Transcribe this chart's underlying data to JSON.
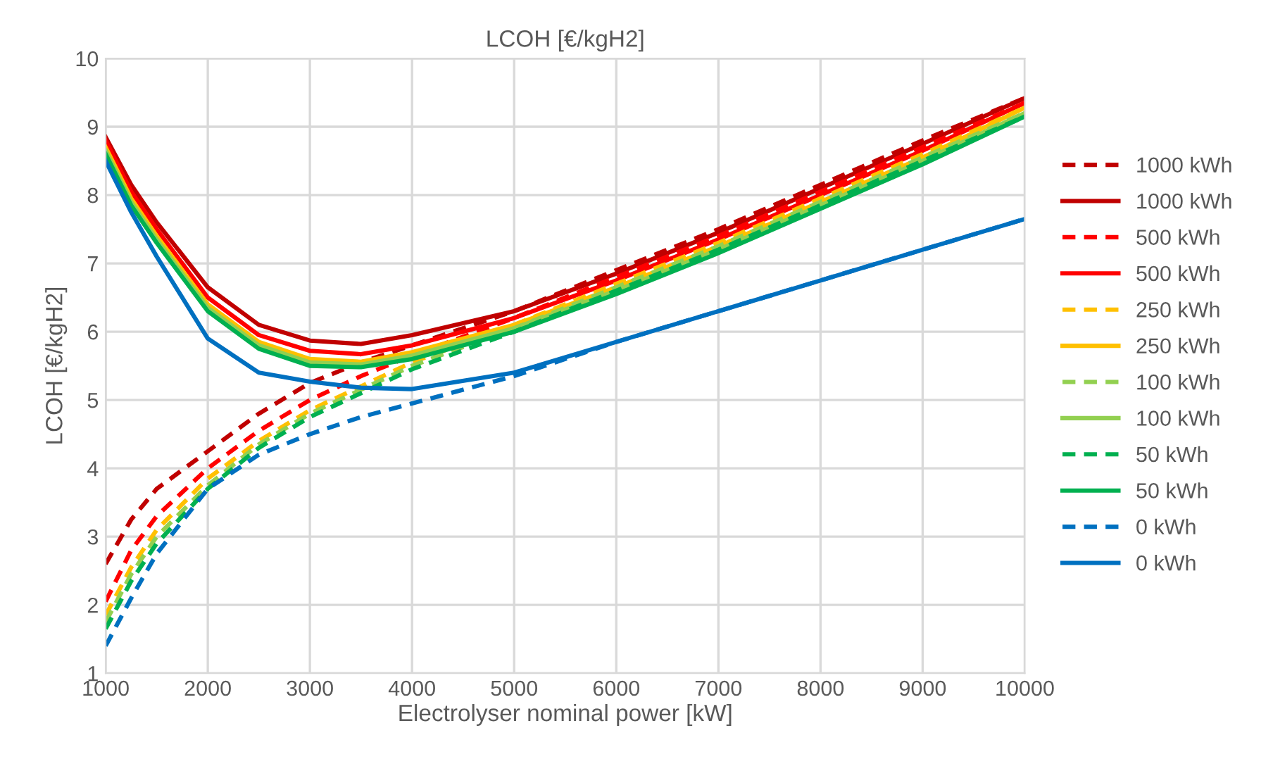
{
  "chart_data": {
    "type": "line",
    "title": "LCOH [€/kgH2]",
    "xlabel": "Electrolyser nominal power [kW]",
    "ylabel": "LCOH [€/kgH2]",
    "x": [
      1000,
      1250,
      1500,
      2000,
      2500,
      3000,
      3500,
      4000,
      5000,
      6000,
      7000,
      8000,
      9000,
      10000
    ],
    "xlim": [
      1000,
      10000
    ],
    "xticks": [
      1000,
      2000,
      3000,
      4000,
      5000,
      6000,
      7000,
      8000,
      9000,
      10000
    ],
    "ylim": [
      1,
      10
    ],
    "yticks": [
      1,
      2,
      3,
      4,
      5,
      6,
      7,
      8,
      9,
      10
    ],
    "grid": true,
    "legend": "right",
    "marker": "none",
    "series": [
      {
        "name": "1000 kWh",
        "color": "#c00000",
        "line_style": "dashed",
        "values": [
          2.6,
          3.25,
          3.7,
          4.25,
          4.8,
          5.25,
          5.55,
          5.8,
          6.3,
          6.9,
          7.5,
          8.15,
          8.8,
          9.42
        ]
      },
      {
        "name": "1000 kWh",
        "color": "#c00000",
        "line_style": "solid",
        "values": [
          8.85,
          8.15,
          7.6,
          6.65,
          6.1,
          5.87,
          5.82,
          5.95,
          6.3,
          6.85,
          7.45,
          8.1,
          8.75,
          9.42
        ]
      },
      {
        "name": "500 kWh",
        "color": "#ff0000",
        "line_style": "dashed",
        "values": [
          2.05,
          2.8,
          3.3,
          4.0,
          4.55,
          5.0,
          5.35,
          5.65,
          6.2,
          6.8,
          7.4,
          8.05,
          8.7,
          9.35
        ]
      },
      {
        "name": "500 kWh",
        "color": "#ff0000",
        "line_style": "solid",
        "values": [
          8.8,
          8.05,
          7.5,
          6.5,
          5.95,
          5.72,
          5.67,
          5.8,
          6.2,
          6.75,
          7.35,
          8.0,
          8.65,
          9.35
        ]
      },
      {
        "name": "250 kWh",
        "color": "#ffc000",
        "line_style": "dashed",
        "values": [
          1.85,
          2.55,
          3.1,
          3.85,
          4.4,
          4.85,
          5.2,
          5.55,
          6.1,
          6.7,
          7.3,
          7.95,
          8.6,
          9.28
        ]
      },
      {
        "name": "250 kWh",
        "color": "#ffc000",
        "line_style": "solid",
        "values": [
          8.7,
          7.95,
          7.4,
          6.4,
          5.85,
          5.6,
          5.56,
          5.7,
          6.1,
          6.65,
          7.25,
          7.9,
          8.55,
          9.28
        ]
      },
      {
        "name": "100 kWh",
        "color": "#92d050",
        "line_style": "dashed",
        "values": [
          1.75,
          2.45,
          3.0,
          3.75,
          4.35,
          4.8,
          5.15,
          5.5,
          6.05,
          6.65,
          7.25,
          7.9,
          8.55,
          9.2
        ]
      },
      {
        "name": "100 kWh",
        "color": "#92d050",
        "line_style": "solid",
        "values": [
          8.65,
          7.9,
          7.35,
          6.35,
          5.8,
          5.55,
          5.52,
          5.65,
          6.05,
          6.6,
          7.2,
          7.85,
          8.5,
          9.2
        ]
      },
      {
        "name": "50 kWh",
        "color": "#00b050",
        "line_style": "dashed",
        "values": [
          1.65,
          2.35,
          2.9,
          3.7,
          4.3,
          4.75,
          5.1,
          5.45,
          6.0,
          6.6,
          7.2,
          7.85,
          8.5,
          9.15
        ]
      },
      {
        "name": "50 kWh",
        "color": "#00b050",
        "line_style": "solid",
        "values": [
          8.6,
          7.85,
          7.3,
          6.3,
          5.75,
          5.5,
          5.48,
          5.6,
          6.0,
          6.55,
          7.15,
          7.8,
          8.45,
          9.15
        ]
      },
      {
        "name": "0 kWh",
        "color": "#0070c0",
        "line_style": "dashed",
        "values": [
          1.4,
          2.1,
          2.75,
          3.7,
          4.2,
          4.5,
          4.75,
          4.95,
          5.35,
          5.85,
          6.3,
          6.75,
          7.2,
          7.65
        ]
      },
      {
        "name": "0 kWh",
        "color": "#0070c0",
        "line_style": "solid",
        "values": [
          8.5,
          7.75,
          7.1,
          5.9,
          5.4,
          5.27,
          5.18,
          5.16,
          5.4,
          5.85,
          6.3,
          6.75,
          7.2,
          7.65
        ]
      }
    ]
  }
}
